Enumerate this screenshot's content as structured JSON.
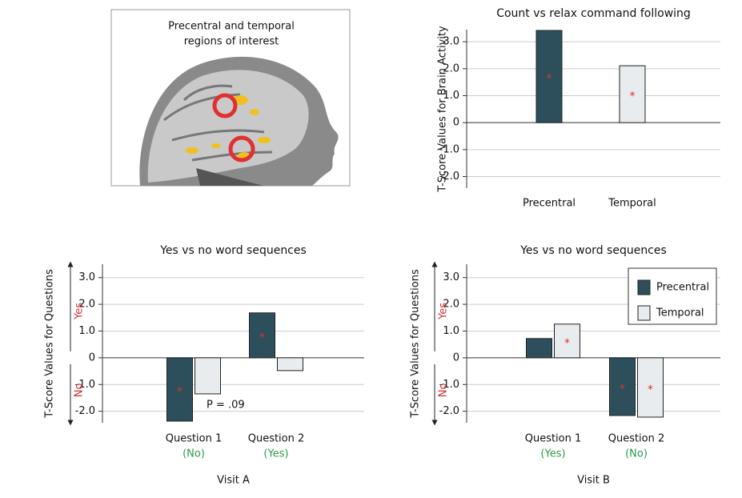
{
  "image": {
    "title_lines": [
      "Precentral and temporal",
      "regions of interest"
    ]
  },
  "chart_data": [
    {
      "type": "bar",
      "title": "Count vs relax command following",
      "ylabel": "T-Score Values for Brain Activity",
      "categories": [
        "Precentral",
        "Temporal"
      ],
      "values": [
        3.42,
        2.11
      ],
      "colors": [
        "#2d4f5c",
        "#e8ecee"
      ],
      "significance": [
        "*",
        "*"
      ],
      "ylim": [
        -2.43,
        3.45
      ],
      "yticks": [
        {
          "value": 3,
          "label": "3.0"
        },
        {
          "value": 2,
          "label": "2.0"
        },
        {
          "value": 1,
          "label": "1.0"
        },
        0,
        {
          "value": -1,
          "label": "-1.0"
        },
        {
          "value": -2,
          "label": "-2.0"
        }
      ],
      "grid": true
    },
    {
      "type": "grouped_bar",
      "title": "Yes vs no word sequences",
      "ylabel": "T-Score Values for Questions",
      "xlabel": "Visit A",
      "direction_labels": [
        "Yes",
        "No"
      ],
      "categories": [
        "Question 1",
        "Question 2"
      ],
      "category_notes": [
        "(No)",
        "(Yes)"
      ],
      "series": [
        {
          "color": "#2d4f5c",
          "values": [
            -2.37,
            1.68
          ],
          "significance": [
            "*",
            "*"
          ]
        },
        {
          "color": "#e8ecee",
          "values": [
            -1.35,
            -0.48
          ],
          "significance": [
            null,
            null
          ]
        }
      ],
      "annotations": [
        {
          "text": "P = .09"
        }
      ],
      "ylim": [
        -2.43,
        3.5
      ],
      "yticks": [
        {
          "value": 3,
          "label": "3.0"
        },
        {
          "value": 2,
          "label": "2.0"
        },
        {
          "value": 1,
          "label": "1.0"
        },
        0,
        {
          "value": -1,
          "label": "-1.0"
        },
        {
          "value": -2,
          "label": "-2.0"
        }
      ],
      "grid": true
    },
    {
      "type": "grouped_bar",
      "title": "Yes vs no word sequences",
      "ylabel": "T-Score Values for Questions",
      "xlabel": "Visit B",
      "direction_labels": [
        "Yes",
        "No"
      ],
      "categories": [
        "Question 1",
        "Question 2"
      ],
      "category_notes": [
        "(Yes)",
        "(No)"
      ],
      "series": [
        {
          "name": "Precentral",
          "color": "#2d4f5c",
          "values": [
            0.72,
            -2.16
          ],
          "significance": [
            null,
            "*"
          ]
        },
        {
          "name": "Temporal",
          "color": "#e8ecee",
          "values": [
            1.26,
            -2.22
          ],
          "significance": [
            "*",
            "*"
          ]
        }
      ],
      "legend": "upper right",
      "ylim": [
        -2.43,
        3.5
      ],
      "yticks": [
        {
          "value": 3,
          "label": "3.0"
        },
        {
          "value": 2,
          "label": "2.0"
        },
        {
          "value": 1,
          "label": "1.0"
        },
        0,
        {
          "value": -1,
          "label": "-1.0"
        },
        {
          "value": -2,
          "label": "-2.0"
        }
      ],
      "grid": true
    }
  ]
}
